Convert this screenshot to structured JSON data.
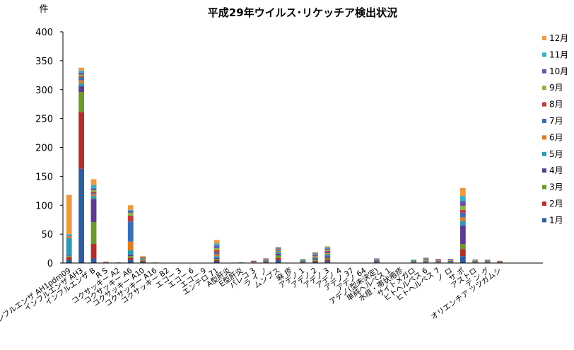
{
  "chart_data": {
    "type": "bar",
    "stacked": true,
    "title": "平成29年ウイルス･リケッチア検出状況",
    "ylabel": "件",
    "xlabel": "",
    "ylim": [
      0,
      400
    ],
    "yticks": [
      0,
      50,
      100,
      150,
      200,
      250,
      300,
      350,
      400
    ],
    "legend_position": "right",
    "grid": false,
    "categories": [
      "インフルエンザ AH1pdm09",
      "インフルエンザ AH3",
      "インフルエンザ B",
      "R S",
      "コクサッキー A2",
      "コクサッキー A6",
      "コクサッキー A10",
      "コクサッキー A16",
      "コクサッキー B2",
      "エコー 3",
      "エコー 6",
      "エコー 9",
      "エンテロ 71",
      "A型肝炎",
      "E型肝炎",
      "パレコ 3",
      "ラ イ ノ",
      "ムンプス",
      "麻 疹",
      "アデノ 1",
      "アデノ 2",
      "アデノ 3",
      "アデノ 4",
      "アデノ 37",
      "アデノ 64",
      "アデノ(型未決定)",
      "単純ヘルペス 1",
      "水痘・帯状疱疹",
      "サイトメガロ",
      "ヒトヘルペス 6",
      "ヒトヘルペス 7",
      "ノ ロ",
      "サ ポ",
      "アストロ",
      "デ ン グ",
      "オリエンチア ツツガムシ",
      "",
      "",
      ""
    ],
    "series": [
      {
        "name": "1月",
        "color": "#2E5E9E",
        "values": [
          5,
          163,
          8,
          1,
          0,
          5,
          2,
          0,
          0,
          0,
          0,
          0,
          3,
          0,
          1,
          0,
          1,
          5,
          0,
          1,
          2,
          3,
          0,
          0,
          0,
          2,
          0,
          0,
          1,
          0,
          0,
          0,
          12,
          0,
          1,
          1,
          0,
          0,
          0
        ]
      },
      {
        "name": "2月",
        "color": "#B22D2D",
        "values": [
          5,
          98,
          25,
          1,
          0,
          4,
          2,
          0,
          0,
          0,
          0,
          0,
          2,
          0,
          0,
          0,
          1,
          4,
          0,
          1,
          2,
          3,
          0,
          0,
          0,
          1,
          0,
          0,
          1,
          1,
          1,
          1,
          12,
          1,
          1,
          1,
          0,
          0,
          0
        ]
      },
      {
        "name": "3月",
        "color": "#6A9A2E",
        "values": [
          2,
          35,
          38,
          0,
          0,
          3,
          1,
          0,
          0,
          0,
          0,
          0,
          2,
          0,
          0,
          0,
          1,
          4,
          0,
          1,
          2,
          3,
          0,
          0,
          0,
          1,
          0,
          0,
          1,
          1,
          1,
          1,
          9,
          1,
          0,
          0,
          0,
          0,
          0
        ]
      },
      {
        "name": "4月",
        "color": "#5B3C8F",
        "values": [
          1,
          10,
          40,
          0,
          0,
          2,
          1,
          0,
          0,
          0,
          0,
          0,
          2,
          0,
          0,
          0,
          1,
          3,
          0,
          1,
          2,
          3,
          0,
          0,
          0,
          1,
          0,
          0,
          0,
          1,
          1,
          1,
          32,
          1,
          0,
          0,
          0,
          0,
          0
        ]
      },
      {
        "name": "5月",
        "color": "#2C9AB0",
        "values": [
          30,
          5,
          5,
          0,
          0,
          8,
          1,
          0,
          0,
          0,
          0,
          0,
          3,
          0,
          0,
          1,
          1,
          3,
          0,
          1,
          2,
          3,
          0,
          0,
          0,
          1,
          0,
          0,
          1,
          1,
          1,
          1,
          8,
          1,
          1,
          1,
          0,
          0,
          0
        ]
      },
      {
        "name": "6月",
        "color": "#E07B20",
        "values": [
          3,
          5,
          3,
          0,
          0,
          15,
          1,
          0,
          0,
          0,
          0,
          0,
          3,
          0,
          0,
          1,
          1,
          2,
          0,
          0,
          2,
          2,
          0,
          0,
          0,
          1,
          0,
          0,
          0,
          1,
          1,
          1,
          6,
          1,
          1,
          1,
          0,
          0,
          0
        ]
      },
      {
        "name": "7月",
        "color": "#3A6FB5",
        "values": [
          0,
          5,
          2,
          0,
          0,
          35,
          1,
          0,
          0,
          0,
          0,
          0,
          3,
          0,
          0,
          1,
          1,
          2,
          0,
          1,
          2,
          2,
          0,
          0,
          0,
          1,
          0,
          0,
          1,
          1,
          1,
          1,
          8,
          1,
          1,
          0,
          0,
          0,
          0
        ]
      },
      {
        "name": "8月",
        "color": "#C23B3B",
        "values": [
          0,
          2,
          2,
          0,
          0,
          10,
          1,
          0,
          0,
          0,
          0,
          0,
          4,
          0,
          0,
          1,
          1,
          1,
          0,
          0,
          1,
          2,
          0,
          0,
          0,
          0,
          0,
          0,
          0,
          1,
          1,
          0,
          5,
          0,
          0,
          0,
          0,
          0,
          0
        ]
      },
      {
        "name": "9月",
        "color": "#8DB543",
        "values": [
          0,
          3,
          3,
          0,
          0,
          5,
          1,
          1,
          0,
          0,
          0,
          0,
          4,
          0,
          0,
          0,
          0,
          1,
          0,
          1,
          1,
          2,
          0,
          0,
          0,
          0,
          0,
          0,
          1,
          1,
          0,
          0,
          7,
          0,
          1,
          0,
          0,
          0,
          0
        ]
      },
      {
        "name": "10月",
        "color": "#6E4FA8",
        "values": [
          1,
          3,
          3,
          0,
          1,
          3,
          0,
          0,
          0,
          0,
          0,
          0,
          4,
          0,
          0,
          0,
          0,
          1,
          0,
          0,
          1,
          2,
          0,
          0,
          0,
          0,
          0,
          0,
          0,
          1,
          0,
          1,
          8,
          0,
          0,
          0,
          0,
          0,
          0
        ]
      },
      {
        "name": "11月",
        "color": "#35B0C8",
        "values": [
          3,
          4,
          6,
          0,
          0,
          2,
          0,
          0,
          0,
          0,
          0,
          0,
          4,
          0,
          0,
          0,
          0,
          1,
          0,
          0,
          1,
          2,
          0,
          0,
          0,
          0,
          0,
          0,
          0,
          0,
          0,
          0,
          9,
          0,
          0,
          0,
          0,
          0,
          0
        ]
      },
      {
        "name": "12月",
        "color": "#EE9A40",
        "values": [
          68,
          5,
          10,
          0,
          0,
          8,
          1,
          0,
          0,
          0,
          0,
          0,
          6,
          0,
          0,
          0,
          0,
          1,
          0,
          0,
          1,
          2,
          0,
          0,
          0,
          0,
          0,
          0,
          0,
          0,
          0,
          0,
          14,
          0,
          0,
          0,
          0,
          0,
          0
        ]
      }
    ]
  }
}
